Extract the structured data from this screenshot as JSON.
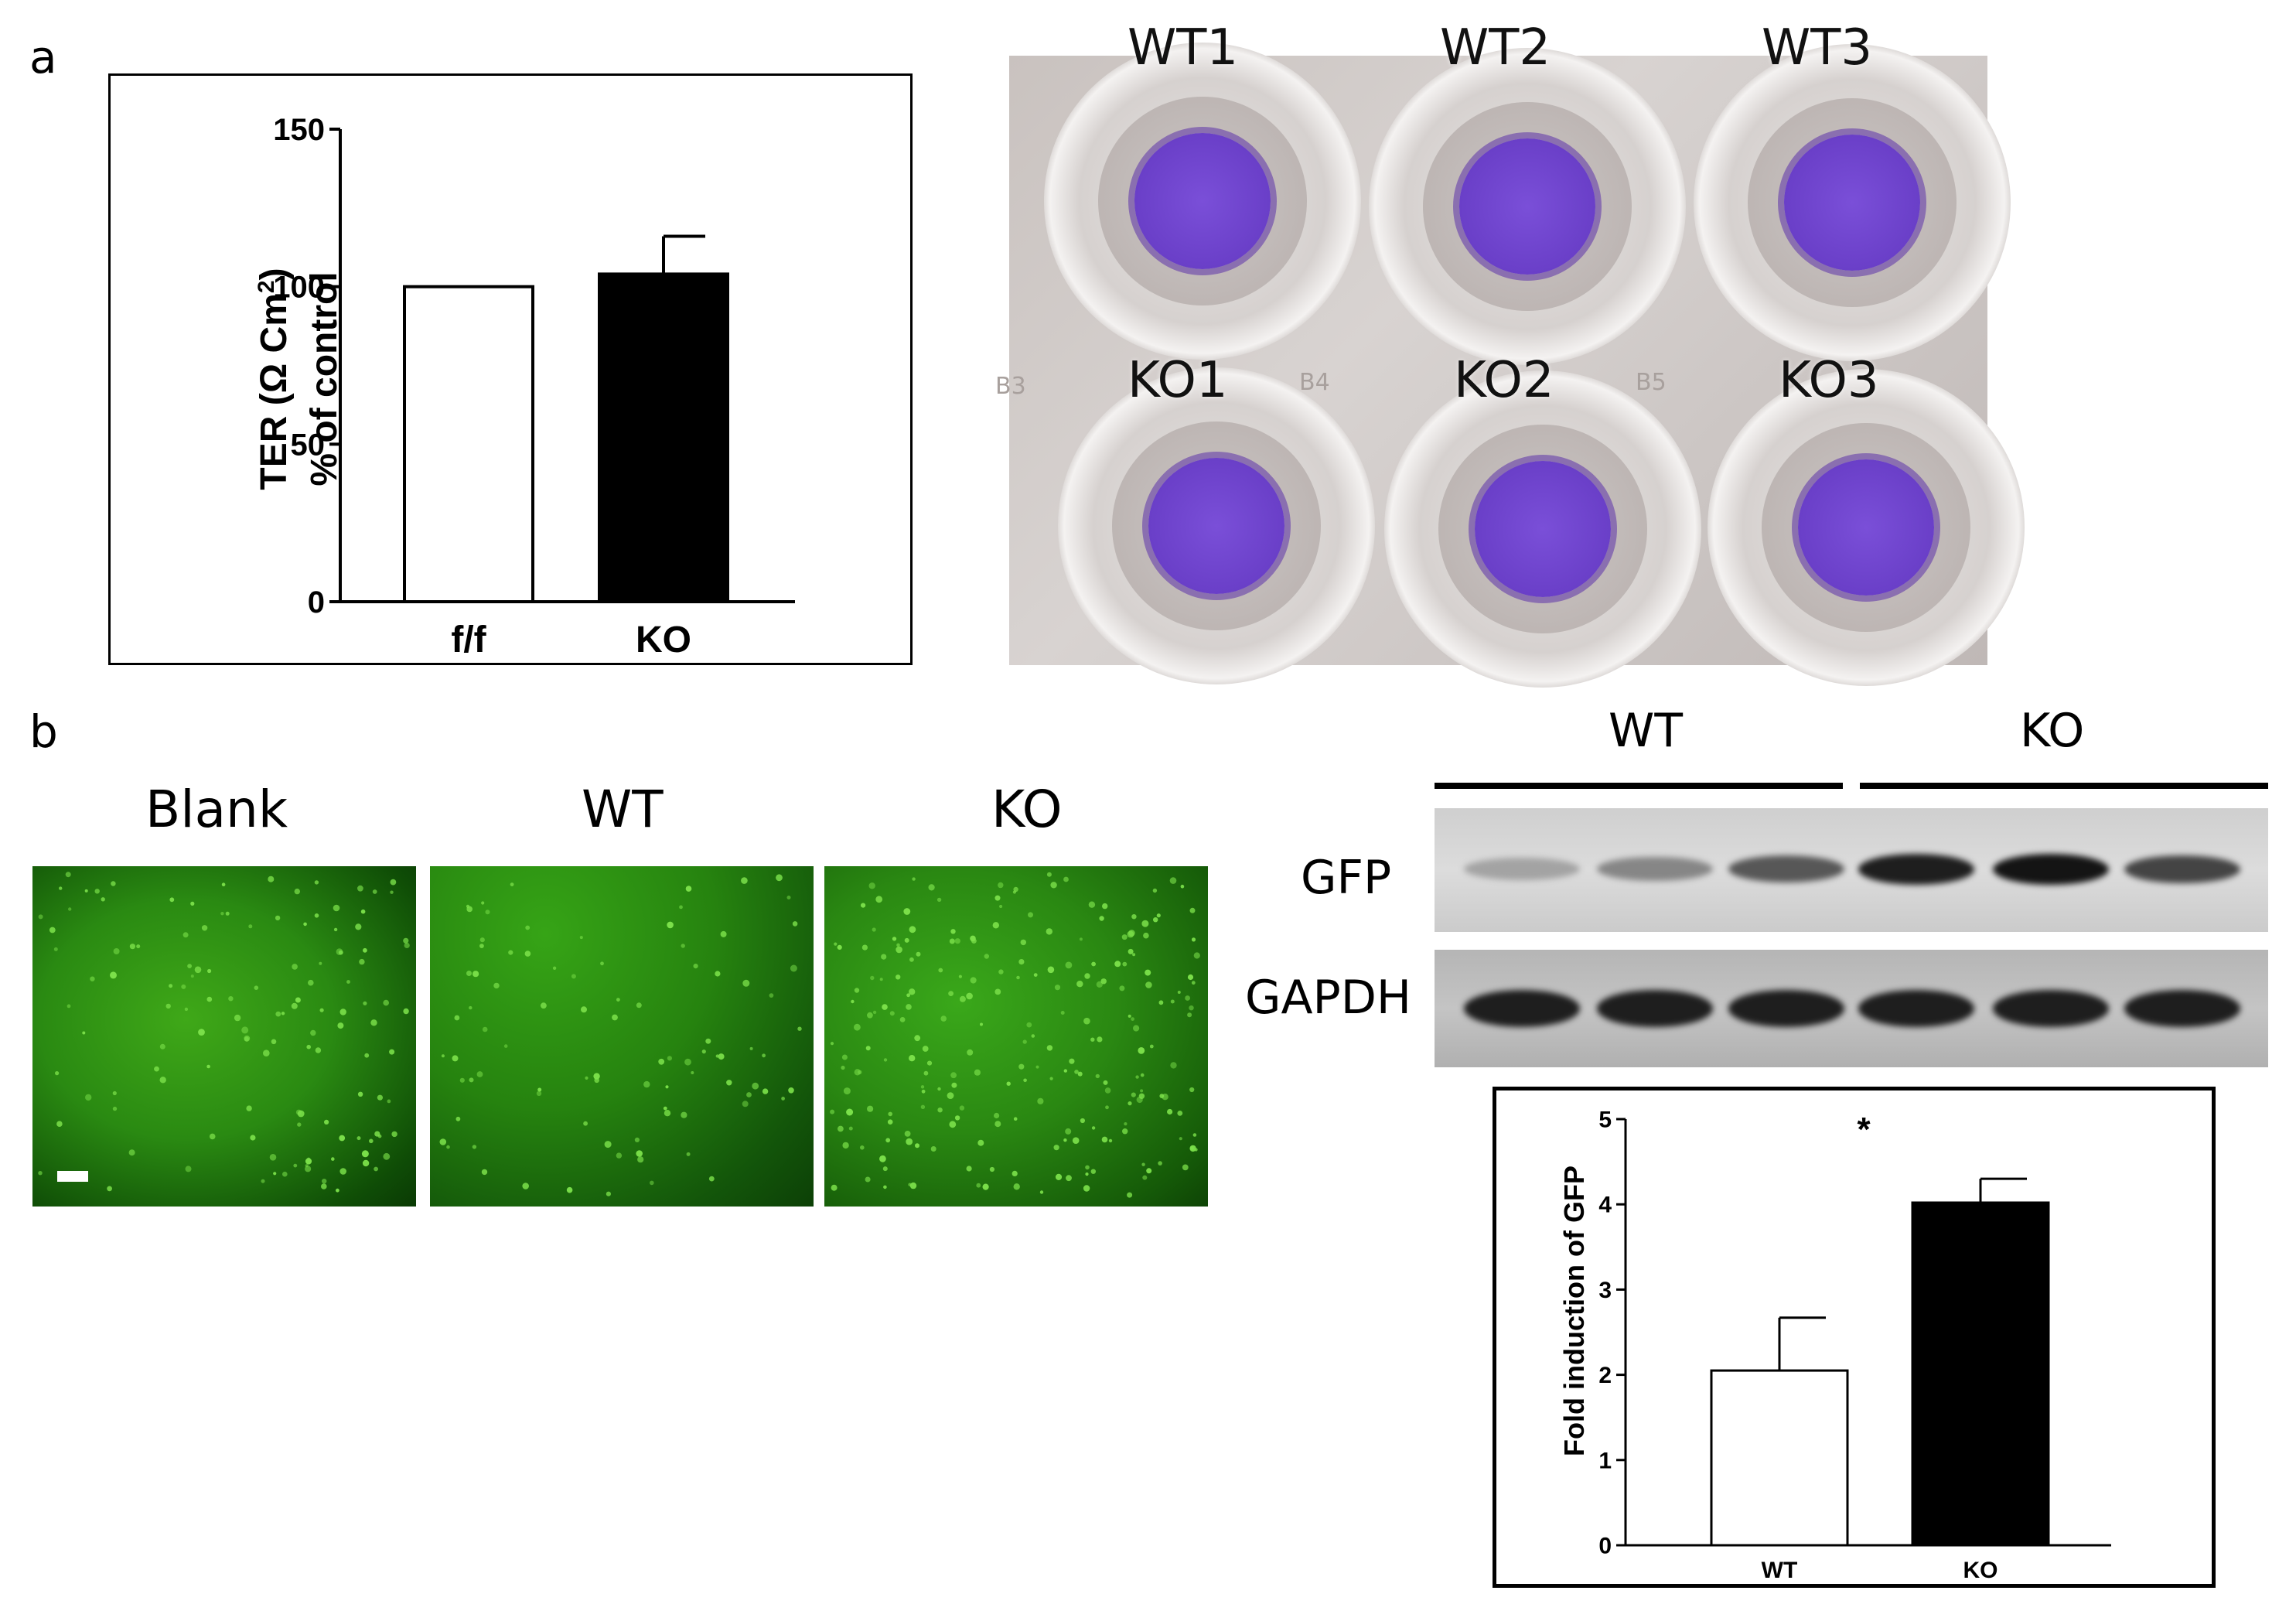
{
  "panel_labels": {
    "a": "a",
    "b": "b"
  },
  "ter_chart": {
    "chart_data": {
      "type": "bar",
      "categories": [
        "f/f",
        "KO"
      ],
      "values": [
        100,
        104
      ],
      "error": [
        0,
        12
      ],
      "ylabel_line1": "TER (Ω Cm",
      "ylabel_sup": "2",
      "ylabel_line1_end": ")",
      "ylabel_line2": "% of control",
      "ylim": [
        0,
        150
      ],
      "yticks": [
        "0",
        "50",
        "100",
        "150"
      ],
      "fills": [
        "#ffffff",
        "#000000"
      ]
    }
  },
  "plate": {
    "wells_top": [
      "WT1",
      "WT2",
      "WT3"
    ],
    "wells_bottom": [
      "KO1",
      "KO2",
      "KO3"
    ],
    "embossed": [
      "B3",
      "B4",
      "B5"
    ],
    "stain_color": "#6a3fc8"
  },
  "microscopy": {
    "labels": [
      "Blank",
      "WT",
      "KO"
    ]
  },
  "western_blot": {
    "groups": [
      "WT",
      "KO"
    ],
    "rows": [
      "GFP",
      "GAPDH"
    ],
    "gfp_intensity": [
      0.25,
      0.4,
      0.65,
      0.95,
      1.0,
      0.75
    ],
    "gapdh_intensity": [
      0.95,
      0.95,
      0.95,
      0.95,
      0.95,
      0.95
    ]
  },
  "gfp_chart": {
    "chart_data": {
      "type": "bar",
      "categories": [
        "WT",
        "KO"
      ],
      "values": [
        2.05,
        4.02
      ],
      "error": [
        0.62,
        0.28
      ],
      "ylabel": "Fold induction of GFP",
      "ylim": [
        0,
        5
      ],
      "yticks": [
        "0",
        "1",
        "2",
        "3",
        "4",
        "5"
      ],
      "significance": "*",
      "fills": [
        "#ffffff",
        "#000000"
      ]
    }
  }
}
